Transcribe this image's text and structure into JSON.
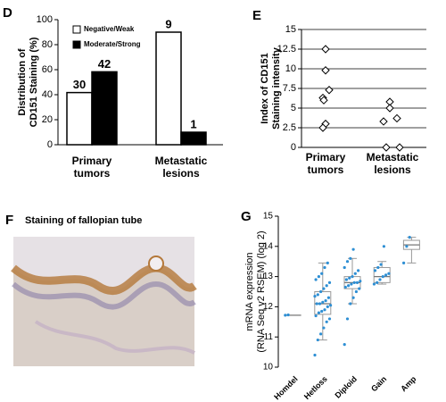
{
  "chart_data": [
    {
      "type": "bar",
      "panel": "D",
      "ylabel": [
        "Distribution of",
        "CD151 Staining (%)"
      ],
      "categories": [
        [
          "Primary",
          "tumors"
        ],
        [
          "Metastatic",
          "lesions"
        ]
      ],
      "series": [
        {
          "name": "Negative/Weak",
          "color": "#ffffff",
          "values": [
            41.7,
            90
          ],
          "counts": [
            30,
            9
          ]
        },
        {
          "name": "Moderate/Strong",
          "color": "#000000",
          "values": [
            58.3,
            10
          ],
          "counts": [
            42,
            1
          ]
        }
      ],
      "ylim": [
        0,
        100
      ],
      "yticks": [
        0,
        20,
        40,
        60,
        80,
        100
      ]
    },
    {
      "type": "strip",
      "panel": "E",
      "ylabel": [
        "Index of CD151",
        "Staining intensity"
      ],
      "categories": [
        [
          "Primary",
          "tumors"
        ],
        [
          "Metastatic",
          "lesions"
        ]
      ],
      "values": [
        [
          12.5,
          9.8,
          7.3,
          6.3,
          6.0,
          3.0,
          2.5
        ],
        [
          5.8,
          5.0,
          3.7,
          3.3,
          0,
          0
        ]
      ],
      "ylim": [
        0,
        15
      ],
      "yticks": [
        0,
        2.5,
        5,
        7.5,
        10,
        12.5,
        15
      ],
      "grid": true
    },
    {
      "type": "box",
      "panel": "G",
      "ylabel": [
        "mRNA expression",
        "(RNA Seq v2 RSEM) (log 2)"
      ],
      "categories": [
        "Homdel",
        "Hetloss",
        "Diploid",
        "Gain",
        "Amp"
      ],
      "color": "#2e8fd4",
      "boxes": [
        {
          "q1": 11.72,
          "median": 11.72,
          "q3": 11.72
        },
        {
          "q1": 11.75,
          "median": 12.1,
          "q3": 12.5,
          "whislo": 10.9,
          "whishi": 13.45
        },
        {
          "q1": 12.6,
          "median": 12.8,
          "q3": 13.0,
          "whislo": 12.1,
          "whishi": 13.6
        },
        {
          "q1": 12.8,
          "median": 13.0,
          "q3": 13.3,
          "whislo": 12.75,
          "whishi": 13.5
        },
        {
          "q1": 13.9,
          "median": 14.05,
          "q3": 14.2,
          "whislo": 13.45,
          "whishi": 14.3
        }
      ],
      "points": [
        [
          11.72,
          11.73
        ],
        [
          10.4,
          10.9,
          11.1,
          11.3,
          11.5,
          11.6,
          11.7,
          11.8,
          11.85,
          11.9,
          12.0,
          12.05,
          12.1,
          12.1,
          12.15,
          12.2,
          12.3,
          12.35,
          12.4,
          12.5,
          12.6,
          12.7,
          12.8,
          12.9,
          13.0,
          13.1,
          13.3,
          13.45
        ],
        [
          10.75,
          11.6,
          12.1,
          12.3,
          12.5,
          12.6,
          12.65,
          12.7,
          12.75,
          12.8,
          12.8,
          12.85,
          12.9,
          12.95,
          13.0,
          13.1,
          13.2,
          13.3,
          13.5,
          13.6,
          13.9
        ],
        [
          12.75,
          12.8,
          12.9,
          13.0,
          13.05,
          13.1,
          13.2,
          13.3,
          13.4,
          14.0
        ],
        [
          13.45,
          14.0,
          14.3
        ]
      ],
      "ylim": [
        10,
        15
      ],
      "yticks": [
        10,
        11,
        12,
        13,
        14,
        15
      ]
    }
  ],
  "image_panel": {
    "panel": "F",
    "title": "Staining of fallopian tube"
  }
}
